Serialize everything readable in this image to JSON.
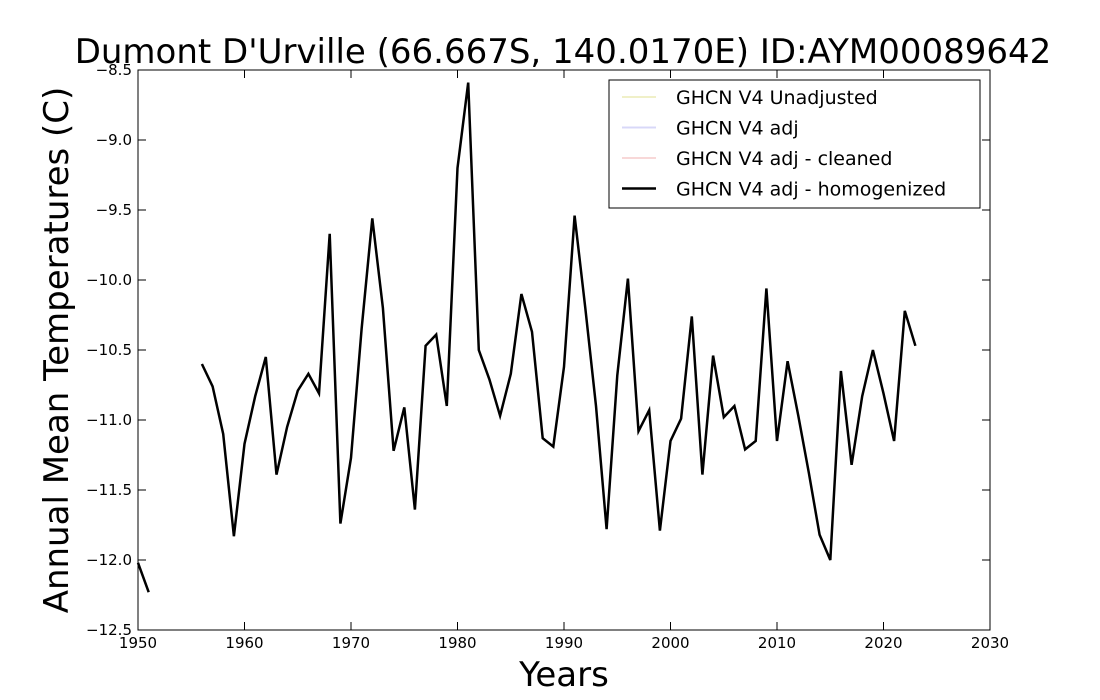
{
  "chart_data": {
    "type": "line",
    "title": "Dumont D'Urville (66.667S, 140.0170E) ID:AYM00089642",
    "xlabel": "Years",
    "ylabel": "Annual Mean Temperatures (C)",
    "xlim": [
      1950,
      2030
    ],
    "ylim": [
      -12.5,
      -8.5
    ],
    "xticks": [
      "1950",
      "1960",
      "1970",
      "1980",
      "1990",
      "2000",
      "2010",
      "2020",
      "2030"
    ],
    "yticks": [
      "−8.5",
      "−9.0",
      "−9.5",
      "−10.0",
      "−10.5",
      "−11.0",
      "−11.5",
      "−12.0",
      "−12.5"
    ],
    "grid": false,
    "legend_position": "top-right",
    "series": [
      {
        "name": "GHCN V4 Unadjusted",
        "color": "#f0f0c8",
        "segments": []
      },
      {
        "name": "GHCN V4 adj",
        "color": "#d8d8f8",
        "segments": []
      },
      {
        "name": "GHCN V4 adj - cleaned",
        "color": "#f8d8d8",
        "segments": []
      },
      {
        "name": "GHCN V4 adj - homogenized",
        "color": "#000000",
        "segments": [
          {
            "x": [
              1950,
              1951
            ],
            "y": [
              -12.02,
              -12.23
            ]
          },
          {
            "x": [
              1956,
              1957,
              1958,
              1959,
              1960,
              1961,
              1962,
              1963,
              1964,
              1965,
              1966,
              1967,
              1968,
              1969,
              1970,
              1971,
              1972,
              1973,
              1974,
              1975,
              1976,
              1977,
              1978,
              1979,
              1980,
              1981,
              1982,
              1983,
              1984,
              1985,
              1986,
              1987,
              1988,
              1989,
              1990,
              1991,
              1992,
              1993,
              1994,
              1995,
              1996,
              1997,
              1998,
              1999,
              2000,
              2001,
              2002,
              2003,
              2004,
              2005,
              2006,
              2007,
              2008,
              2009,
              2010,
              2011,
              2012,
              2013,
              2014,
              2015,
              2016,
              2017,
              2018,
              2019,
              2020,
              2021,
              2022,
              2023
            ],
            "y": [
              -10.6,
              -10.76,
              -11.1,
              -11.83,
              -11.17,
              -10.83,
              -10.55,
              -11.39,
              -11.05,
              -10.79,
              -10.67,
              -10.81,
              -9.67,
              -11.74,
              -11.27,
              -10.35,
              -9.56,
              -10.2,
              -11.22,
              -10.91,
              -11.64,
              -10.47,
              -10.39,
              -10.9,
              -9.2,
              -8.59,
              -10.5,
              -10.71,
              -10.97,
              -10.67,
              -10.1,
              -10.37,
              -11.13,
              -11.19,
              -10.62,
              -9.54,
              -10.2,
              -10.9,
              -11.78,
              -10.68,
              -9.99,
              -11.08,
              -10.93,
              -11.79,
              -11.15,
              -10.99,
              -10.26,
              -11.39,
              -10.54,
              -10.98,
              -10.9,
              -11.21,
              -11.15,
              -10.06,
              -11.15,
              -10.58,
              -10.97,
              -11.38,
              -11.82,
              -12.0,
              -10.65,
              -11.32,
              -10.83,
              -10.5,
              -10.81,
              -11.15,
              -10.22,
              -10.47
            ]
          }
        ]
      }
    ]
  }
}
